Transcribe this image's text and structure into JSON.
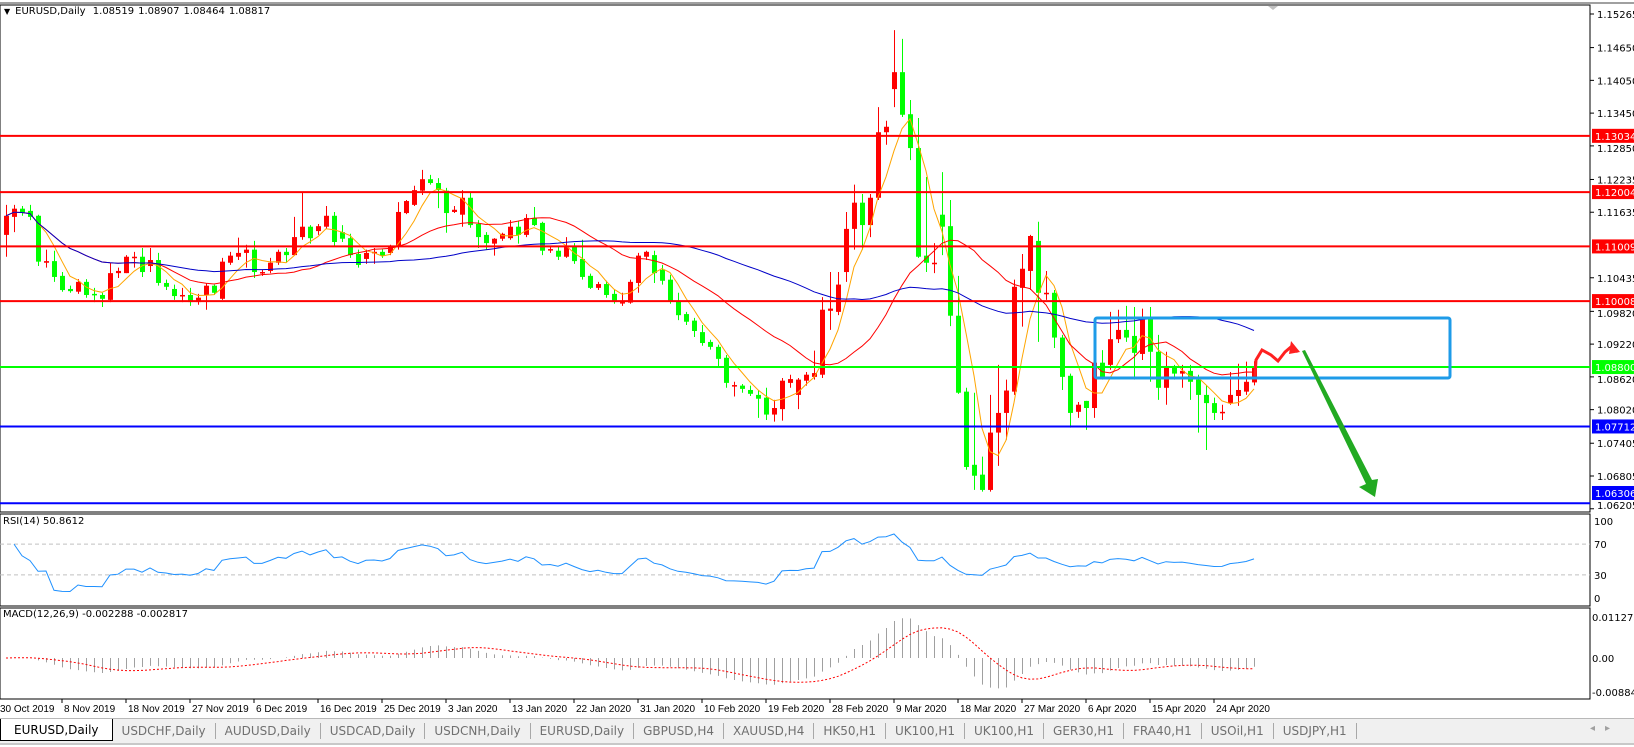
{
  "header": {
    "symbol": "EURUSD,Daily",
    "open": "1.08519",
    "high": "1.08907",
    "low": "1.08464",
    "close": "1.08817"
  },
  "indicators": {
    "rsi_label": "RSI(14) 50.8612",
    "macd_label": "MACD(12,26,9) -0.002288 -0.002817"
  },
  "tabs": [
    {
      "label": "EURUSD,Daily",
      "active": true
    },
    {
      "label": "USDCHF,Daily"
    },
    {
      "label": "AUDUSD,Daily"
    },
    {
      "label": "USDCAD,Daily"
    },
    {
      "label": "USDCNH,Daily"
    },
    {
      "label": "EURUSD,Daily"
    },
    {
      "label": "GBPUSD,H4"
    },
    {
      "label": "XAUUSD,H4"
    },
    {
      "label": "HK50,H1"
    },
    {
      "label": "UK100,H1"
    },
    {
      "label": "UK100,H1"
    },
    {
      "label": "GER30,H1"
    },
    {
      "label": "FRA40,H1"
    },
    {
      "label": "USOil,H1"
    },
    {
      "label": "USDJPY,H1"
    }
  ],
  "tab_scroll": {
    "left_icon": "triangle-left",
    "right_icon": "triangle-right",
    "left": "◂",
    "right": "▸"
  },
  "chart_data": {
    "type": "candlestick",
    "symbol": "EURUSD",
    "timeframe": "Daily",
    "up_color": "#ff0000",
    "down_color": "#00ff00",
    "ylim": [
      1.06205,
      1.15265
    ],
    "y_ticks": [
      "1.15265",
      "1.14650",
      "1.14050",
      "1.13450",
      "1.12850",
      "1.12235",
      "1.11635",
      "1.10435",
      "1.09820",
      "1.09220",
      "1.08620",
      "1.08020",
      "1.07405",
      "1.06805",
      "1.06205"
    ],
    "x_tick_labels": [
      "30 Oct 2019",
      "8 Nov 2019",
      "18 Nov 2019",
      "27 Nov 2019",
      "6 Dec 2019",
      "16 Dec 2019",
      "25 Dec 2019",
      "3 Jan 2020",
      "13 Jan 2020",
      "22 Jan 2020",
      "31 Jan 2020",
      "10 Feb 2020",
      "19 Feb 2020",
      "28 Feb 2020",
      "9 Mar 2020",
      "18 Mar 2020",
      "27 Mar 2020",
      "6 Apr 2020",
      "15 Apr 2020",
      "24 Apr 2020"
    ],
    "candle_fields": [
      "open",
      "high",
      "low",
      "close"
    ],
    "candles": [
      [
        1.1122,
        1.1177,
        1.1082,
        1.1157
      ],
      [
        1.1155,
        1.1177,
        1.1127,
        1.117
      ],
      [
        1.117,
        1.1175,
        1.1157,
        1.1162
      ],
      [
        1.1166,
        1.1177,
        1.1149,
        1.1155
      ],
      [
        1.1157,
        1.1159,
        1.1065,
        1.1073
      ],
      [
        1.1071,
        1.1095,
        1.1062,
        1.1074
      ],
      [
        1.1074,
        1.1093,
        1.1036,
        1.1045
      ],
      [
        1.1047,
        1.1054,
        1.1018,
        1.1021
      ],
      [
        1.1023,
        1.1029,
        1.1016,
        1.1019
      ],
      [
        1.1018,
        1.1041,
        1.1014,
        1.1036
      ],
      [
        1.1036,
        1.1041,
        1.1007,
        1.1012
      ],
      [
        1.1014,
        1.1025,
        1.0999,
        1.1012
      ],
      [
        1.1012,
        1.1016,
        1.099,
        1.1005
      ],
      [
        1.1003,
        1.1071,
        1.0999,
        1.1052
      ],
      [
        1.1052,
        1.1062,
        1.1043,
        1.1056
      ],
      [
        1.1052,
        1.1085,
        1.1052,
        1.1082
      ],
      [
        1.1082,
        1.1091,
        1.1062,
        1.1082
      ],
      [
        1.1082,
        1.1098,
        1.1045,
        1.1054
      ],
      [
        1.1065,
        1.1098,
        1.1054,
        1.1076
      ],
      [
        1.1076,
        1.1089,
        1.1029,
        1.1034
      ],
      [
        1.1034,
        1.104,
        1.1021,
        1.1027
      ],
      [
        1.1023,
        1.1031,
        1.1003,
        1.101
      ],
      [
        1.1012,
        1.1025,
        1.0999,
        1.1012
      ],
      [
        1.1012,
        1.1025,
        1.0992,
        1.0999
      ],
      [
        1.0999,
        1.1014,
        1.0994,
        1.1007
      ],
      [
        1.1012,
        1.1034,
        1.0985,
        1.1029
      ],
      [
        1.1029,
        1.1031,
        1.1012,
        1.1016
      ],
      [
        1.1005,
        1.108,
        1.1003,
        1.1073
      ],
      [
        1.1071,
        1.1091,
        1.1067,
        1.1084
      ],
      [
        1.1082,
        1.1117,
        1.1076,
        1.1089
      ],
      [
        1.1089,
        1.1104,
        1.1062,
        1.1095
      ],
      [
        1.1095,
        1.1111,
        1.1043,
        1.1054
      ],
      [
        1.1052,
        1.1058,
        1.1047,
        1.1054
      ],
      [
        1.1056,
        1.108,
        1.1052,
        1.1071
      ],
      [
        1.1071,
        1.1095,
        1.1067,
        1.1091
      ],
      [
        1.1091,
        1.1098,
        1.1071,
        1.1085
      ],
      [
        1.1085,
        1.1155,
        1.1084,
        1.1118
      ],
      [
        1.1118,
        1.1201,
        1.1113,
        1.1137
      ],
      [
        1.1137,
        1.114,
        1.1106,
        1.1116
      ],
      [
        1.1129,
        1.1142,
        1.1122,
        1.1138
      ],
      [
        1.1137,
        1.1175,
        1.1133,
        1.1157
      ],
      [
        1.1157,
        1.1164,
        1.11,
        1.1109
      ],
      [
        1.1127,
        1.114,
        1.1109,
        1.1115
      ],
      [
        1.1116,
        1.1124,
        1.108,
        1.1085
      ],
      [
        1.1087,
        1.1095,
        1.1062,
        1.1067
      ],
      [
        1.1078,
        1.1095,
        1.1069,
        1.1089
      ],
      [
        1.1089,
        1.1098,
        1.1069,
        1.1091
      ],
      [
        1.1091,
        1.1096,
        1.108,
        1.1084
      ],
      [
        1.1089,
        1.1104,
        1.1085,
        1.11
      ],
      [
        1.11,
        1.1182,
        1.1095,
        1.1164
      ],
      [
        1.1162,
        1.1186,
        1.116,
        1.1184
      ],
      [
        1.1177,
        1.1212,
        1.1175,
        1.1204
      ],
      [
        1.1203,
        1.1241,
        1.1195,
        1.1224
      ],
      [
        1.1224,
        1.1232,
        1.1214,
        1.1217
      ],
      [
        1.1217,
        1.1226,
        1.1171,
        1.1204
      ],
      [
        1.1203,
        1.1208,
        1.1126,
        1.1162
      ],
      [
        1.1164,
        1.1175,
        1.1162,
        1.1168
      ],
      [
        1.1159,
        1.1204,
        1.1137,
        1.119
      ],
      [
        1.119,
        1.1199,
        1.1135,
        1.114
      ],
      [
        1.1142,
        1.1149,
        1.1098,
        1.1118
      ],
      [
        1.1122,
        1.1127,
        1.1095,
        1.1107
      ],
      [
        1.1106,
        1.1116,
        1.1084,
        1.1115
      ],
      [
        1.1115,
        1.1126,
        1.1111,
        1.1124
      ],
      [
        1.1116,
        1.1149,
        1.1113,
        1.1137
      ],
      [
        1.1137,
        1.1148,
        1.1106,
        1.1122
      ],
      [
        1.1122,
        1.116,
        1.1118,
        1.1153
      ],
      [
        1.1153,
        1.1173,
        1.1138,
        1.114
      ],
      [
        1.1144,
        1.1146,
        1.1085,
        1.1093
      ],
      [
        1.1096,
        1.11,
        1.1089,
        1.1096
      ],
      [
        1.1093,
        1.1102,
        1.1076,
        1.1082
      ],
      [
        1.1082,
        1.1118,
        1.108,
        1.11
      ],
      [
        1.11,
        1.1107,
        1.1069,
        1.1074
      ],
      [
        1.1078,
        1.1113,
        1.104,
        1.1045
      ],
      [
        1.1047,
        1.1051,
        1.1023,
        1.1025
      ],
      [
        1.1025,
        1.1036,
        1.1021,
        1.1032
      ],
      [
        1.1032,
        1.1038,
        1.1007,
        1.1012
      ],
      [
        1.1014,
        1.1021,
        1.0996,
        1.0999
      ],
      [
        1.0999,
        1.1016,
        1.0992,
        1.0999
      ],
      [
        1.0998,
        1.104,
        1.0996,
        1.1036
      ],
      [
        1.1034,
        1.1089,
        1.1016,
        1.1084
      ],
      [
        1.1082,
        1.1093,
        1.1076,
        1.1091
      ],
      [
        1.1085,
        1.1093,
        1.1034,
        1.1052
      ],
      [
        1.1058,
        1.1067,
        1.1031,
        1.1038
      ],
      [
        1.104,
        1.1049,
        1.0996,
        1.1001
      ],
      [
        1.1001,
        1.1016,
        1.0966,
        1.0975
      ],
      [
        1.0977,
        1.0981,
        1.0957,
        1.0963
      ],
      [
        1.0965,
        1.097,
        1.0935,
        1.0946
      ],
      [
        1.0944,
        1.0957,
        1.0919,
        1.0924
      ],
      [
        1.0926,
        1.093,
        1.0912,
        1.0917
      ],
      [
        1.0917,
        1.0921,
        1.0879,
        1.0895
      ],
      [
        1.0897,
        1.0902,
        1.0842,
        1.0851
      ],
      [
        1.0847,
        1.0853,
        1.0826,
        1.0847
      ],
      [
        1.0846,
        1.0849,
        1.0833,
        1.084
      ],
      [
        1.0838,
        1.0846,
        1.0827,
        1.0831
      ],
      [
        1.0829,
        1.0838,
        1.0787,
        1.0822
      ],
      [
        1.0824,
        1.0842,
        1.0783,
        1.0793
      ],
      [
        1.0793,
        1.082,
        1.078,
        1.0805
      ],
      [
        1.0803,
        1.086,
        1.0782,
        1.0855
      ],
      [
        1.0851,
        1.0866,
        1.0842,
        1.0858
      ],
      [
        1.0829,
        1.086,
        1.0803,
        1.0857
      ],
      [
        1.0855,
        1.0871,
        1.0846,
        1.0866
      ],
      [
        1.0862,
        1.091,
        1.0857,
        1.0869
      ],
      [
        1.0866,
        1.1008,
        1.086,
        1.0985
      ],
      [
        1.0983,
        1.1054,
        1.0948,
        1.0987
      ],
      [
        1.0981,
        1.1054,
        1.0975,
        1.1031
      ],
      [
        1.1054,
        1.1164,
        1.1036,
        1.1133
      ],
      [
        1.1133,
        1.1214,
        1.1095,
        1.1181
      ],
      [
        1.1181,
        1.1197,
        1.1095,
        1.114
      ],
      [
        1.114,
        1.1197,
        1.1118,
        1.119
      ],
      [
        1.119,
        1.1356,
        1.1186,
        1.131
      ],
      [
        1.131,
        1.1331,
        1.1287,
        1.132
      ],
      [
        1.1389,
        1.1497,
        1.1356,
        1.142
      ],
      [
        1.142,
        1.1481,
        1.1338,
        1.1342
      ],
      [
        1.1343,
        1.1369,
        1.1259,
        1.1281
      ],
      [
        1.1281,
        1.1336,
        1.108,
        1.1082
      ],
      [
        1.1084,
        1.1228,
        1.1054,
        1.1071
      ],
      [
        1.1071,
        1.1107,
        1.1052,
        1.1071
      ],
      [
        1.1159,
        1.1237,
        1.1085,
        1.1137
      ],
      [
        1.1138,
        1.1186,
        1.0955,
        1.0974
      ],
      [
        1.0974,
        1.1047,
        1.0831,
        1.0833
      ],
      [
        1.0835,
        1.0842,
        1.0692,
        1.0697
      ],
      [
        1.0701,
        1.0833,
        1.0655,
        1.0681
      ],
      [
        1.0683,
        1.0716,
        1.0652,
        1.0655
      ],
      [
        1.0655,
        1.0829,
        1.0652,
        1.076
      ],
      [
        1.076,
        1.0884,
        1.0699,
        1.0796
      ],
      [
        1.0796,
        1.0857,
        1.0747,
        1.0837
      ],
      [
        1.0835,
        1.104,
        1.0829,
        1.1027
      ],
      [
        1.1025,
        1.1087,
        1.0954,
        1.106
      ],
      [
        1.1056,
        1.1122,
        1.1021,
        1.112
      ],
      [
        1.1111,
        1.1146,
        1.0926,
        1.1016
      ],
      [
        1.1016,
        1.1056,
        1.1003,
        1.1016
      ],
      [
        1.1016,
        1.1021,
        1.0915,
        1.0934
      ],
      [
        1.0934,
        1.0939,
        1.0838,
        1.0862
      ],
      [
        1.0864,
        1.0868,
        1.0769,
        1.0796
      ],
      [
        1.0798,
        1.0816,
        1.0787,
        1.0811
      ],
      [
        1.0818,
        1.0818,
        1.0765,
        1.0805
      ],
      [
        1.0805,
        1.089,
        1.0787,
        1.0888
      ],
      [
        1.0888,
        1.0911,
        1.0857,
        1.0862
      ],
      [
        1.0884,
        1.0981,
        1.0875,
        1.0931
      ],
      [
        1.0931,
        1.0985,
        1.0924,
        1.0948
      ],
      [
        1.0948,
        1.0992,
        1.0926,
        1.0934
      ],
      [
        1.0937,
        1.099,
        1.0857,
        1.0906
      ],
      [
        1.0904,
        1.0987,
        1.0893,
        1.0968
      ],
      [
        1.0968,
        1.099,
        1.0853,
        1.0908
      ],
      [
        1.0908,
        1.0939,
        1.082,
        1.0842
      ],
      [
        1.0842,
        1.0908,
        1.0811,
        1.0882
      ],
      [
        1.0882,
        1.0884,
        1.0857,
        1.0868
      ],
      [
        1.0868,
        1.0884,
        1.0842,
        1.0873
      ],
      [
        1.0873,
        1.0884,
        1.082,
        1.0853
      ],
      [
        1.0857,
        1.0866,
        1.076,
        1.0829
      ],
      [
        1.0829,
        1.0847,
        1.0728,
        1.0814
      ],
      [
        1.0814,
        1.0824,
        1.0783,
        1.0796
      ],
      [
        1.0796,
        1.0811,
        1.0783,
        1.0798
      ],
      [
        1.0814,
        1.0871,
        1.0811,
        1.0829
      ],
      [
        1.0827,
        1.0886,
        1.0809,
        1.0838
      ],
      [
        1.0835,
        1.089,
        1.0829,
        1.0853
      ],
      [
        1.08519,
        1.08907,
        1.08464,
        1.08817
      ]
    ],
    "moving_average_colors": [
      "#ffa500",
      "#ff0000",
      "#0000c8"
    ],
    "horizontal_lines": [
      {
        "price": "1.13034",
        "color": "#ff0000"
      },
      {
        "price": "1.12004",
        "color": "#ff0000"
      },
      {
        "price": "1.11009",
        "color": "#ff0000"
      },
      {
        "price": "1.10008",
        "color": "#ff0000"
      },
      {
        "price": "1.08800",
        "color": "#00ff00"
      },
      {
        "price": "1.07712",
        "color": "#0000ff"
      },
      {
        "price": "1.06306",
        "color": "#0000ff"
      }
    ],
    "annotations": {
      "zone_color": "#1e9be8",
      "forecast_up_color": "#ff2020",
      "forecast_down_color": "#22aa22"
    },
    "rsi": {
      "period": 14,
      "value": 50.8612,
      "levels": [
        70,
        30
      ],
      "ticks": [
        "100",
        "70",
        "30",
        "0"
      ],
      "color": "#1e90ff"
    },
    "macd": {
      "params": [
        12,
        26,
        9
      ],
      "main": -0.002288,
      "signal": -0.002817,
      "ticks": [
        "0.011277",
        "0.00",
        "-0.008845"
      ],
      "histogram_color": "#a0a0a0",
      "signal_color": "#ff0000"
    }
  }
}
